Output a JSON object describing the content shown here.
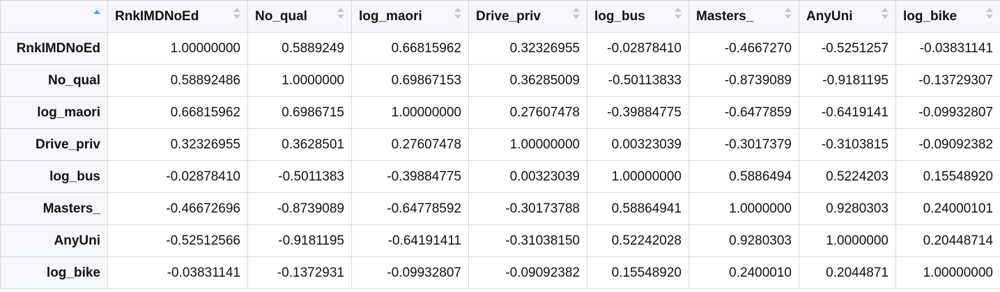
{
  "columns": [
    "RnkIMDNoEd",
    "No_qual",
    "log_maori",
    "Drive_priv",
    "log_bus",
    "Masters_",
    "AnyUni",
    "log_bike"
  ],
  "rows": [
    {
      "name": "RnkIMDNoEd",
      "values": [
        "1.00000000",
        "0.5889249",
        "0.66815962",
        "0.32326955",
        "-0.02878410",
        "-0.4667270",
        "-0.5251257",
        "-0.03831141"
      ]
    },
    {
      "name": "No_qual",
      "values": [
        "0.58892486",
        "1.0000000",
        "0.69867153",
        "0.36285009",
        "-0.50113833",
        "-0.8739089",
        "-0.9181195",
        "-0.13729307"
      ]
    },
    {
      "name": "log_maori",
      "values": [
        "0.66815962",
        "0.6986715",
        "1.00000000",
        "0.27607478",
        "-0.39884775",
        "-0.6477859",
        "-0.6419141",
        "-0.09932807"
      ]
    },
    {
      "name": "Drive_priv",
      "values": [
        "0.32326955",
        "0.3628501",
        "0.27607478",
        "1.00000000",
        "0.00323039",
        "-0.3017379",
        "-0.3103815",
        "-0.09092382"
      ]
    },
    {
      "name": "log_bus",
      "values": [
        "-0.02878410",
        "-0.5011383",
        "-0.39884775",
        "0.00323039",
        "1.00000000",
        "0.5886494",
        "0.5224203",
        "0.15548920"
      ]
    },
    {
      "name": "Masters_",
      "values": [
        "-0.46672696",
        "-0.8739089",
        "-0.64778592",
        "-0.30173788",
        "0.58864941",
        "1.0000000",
        "0.9280303",
        "0.24000101"
      ]
    },
    {
      "name": "AnyUni",
      "values": [
        "-0.52512566",
        "-0.9181195",
        "-0.64191411",
        "-0.31038150",
        "0.52242028",
        "0.9280303",
        "1.0000000",
        "0.20448714"
      ]
    },
    {
      "name": "log_bike",
      "values": [
        "-0.03831141",
        "-0.1372931",
        "-0.09932807",
        "-0.09092382",
        "0.15548920",
        "0.2400010",
        "0.2044871",
        "1.00000000"
      ]
    }
  ],
  "sort": {
    "column": "rownames",
    "direction": "ascending"
  },
  "colors": {
    "header_bg": "#f5f7fa",
    "border": "#d9d9d9",
    "sort_active": "#4aa0e6",
    "sort_inactive": "#c8c8c8"
  }
}
